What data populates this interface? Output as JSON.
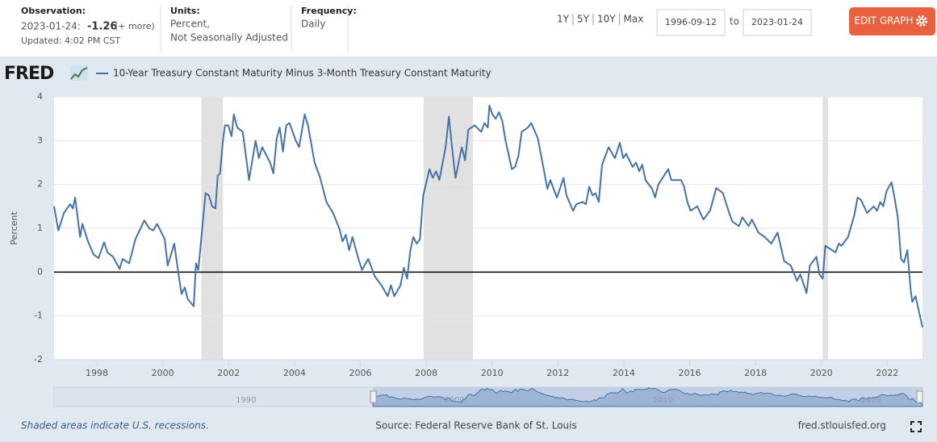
{
  "header": {
    "observation": {
      "label": "Observation:",
      "date": "2023-01-24:",
      "value": "-1.26",
      "more": "(+ more)",
      "updated": "Updated: 4:02 PM CST"
    },
    "units": {
      "label": "Units:",
      "lines": [
        "Percent,",
        "Not Seasonally Adjusted"
      ]
    },
    "frequency": {
      "label": "Frequency:",
      "value": "Daily"
    },
    "ranges": [
      "1Y",
      "5Y",
      "10Y",
      "Max"
    ],
    "start_date": "1996-09-12",
    "to": "to",
    "end_date": "2023-01-24",
    "edit_button": "EDIT GRAPH"
  },
  "logo": "FRED",
  "chart_data": {
    "type": "line",
    "ylabel": "Percent",
    "xlim": [
      1996.7,
      2023.07
    ],
    "xticks": [
      1998,
      2000,
      2002,
      2004,
      2006,
      2008,
      2010,
      2012,
      2014,
      2016,
      2018,
      2020,
      2022
    ],
    "ylim": [
      -2,
      4
    ],
    "yticks": [
      -2,
      -1,
      0,
      1,
      2,
      3,
      4
    ],
    "grid": true,
    "baseline": 0,
    "recessions": [
      [
        2001.17,
        2001.83
      ],
      [
        2007.92,
        2009.42
      ],
      [
        2020.04,
        2020.2
      ]
    ],
    "recession_color": "#e1e1e1",
    "x": [
      1996.7,
      1996.83,
      1997.0,
      1997.19,
      1997.27,
      1997.34,
      1997.49,
      1997.56,
      1997.73,
      1997.9,
      1998.05,
      1998.22,
      1998.32,
      1998.49,
      1998.69,
      1998.78,
      1998.98,
      1999.17,
      1999.44,
      1999.59,
      1999.71,
      1999.83,
      2000.06,
      2000.15,
      2000.25,
      2000.35,
      2000.47,
      2000.57,
      2000.67,
      2000.76,
      2000.94,
      2001.01,
      2001.08,
      2001.2,
      2001.3,
      2001.4,
      2001.5,
      2001.6,
      2001.67,
      2001.74,
      2001.82,
      2001.89,
      2001.99,
      2002.09,
      2002.16,
      2002.26,
      2002.43,
      2002.62,
      2002.82,
      2002.92,
      2003.02,
      2003.26,
      2003.36,
      2003.46,
      2003.55,
      2003.65,
      2003.75,
      2003.85,
      2004.04,
      2004.14,
      2004.31,
      2004.41,
      2004.61,
      2004.78,
      2004.97,
      2005.17,
      2005.36,
      2005.46,
      2005.56,
      2005.66,
      2005.76,
      2005.95,
      2006.05,
      2006.24,
      2006.44,
      2006.64,
      2006.83,
      2006.93,
      2007.03,
      2007.22,
      2007.32,
      2007.42,
      2007.52,
      2007.61,
      2007.71,
      2007.81,
      2007.91,
      2008.1,
      2008.2,
      2008.3,
      2008.4,
      2008.59,
      2008.69,
      2008.79,
      2008.89,
      2009.08,
      2009.18,
      2009.28,
      2009.47,
      2009.67,
      2009.77,
      2009.87,
      2009.92,
      2010.01,
      2010.11,
      2010.21,
      2010.31,
      2010.41,
      2010.6,
      2010.7,
      2010.8,
      2010.9,
      2011.09,
      2011.19,
      2011.39,
      2011.58,
      2011.68,
      2011.77,
      2011.97,
      2012.17,
      2012.26,
      2012.46,
      2012.56,
      2012.75,
      2012.85,
      2012.95,
      2013.05,
      2013.14,
      2013.24,
      2013.34,
      2013.54,
      2013.73,
      2013.88,
      2013.98,
      2014.07,
      2014.27,
      2014.37,
      2014.47,
      2014.56,
      2014.66,
      2014.86,
      2014.95,
      2015.05,
      2015.35,
      2015.44,
      2015.74,
      2015.83,
      2015.93,
      2016.03,
      2016.23,
      2016.42,
      2016.62,
      2016.81,
      2017.01,
      2017.2,
      2017.3,
      2017.5,
      2017.6,
      2017.79,
      2017.89,
      2018.09,
      2018.28,
      2018.48,
      2018.67,
      2018.87,
      2019.07,
      2019.26,
      2019.36,
      2019.55,
      2019.65,
      2019.85,
      2019.94,
      2020.04,
      2020.12,
      2020.43,
      2020.53,
      2020.61,
      2020.81,
      2021.0,
      2021.1,
      2021.2,
      2021.39,
      2021.59,
      2021.69,
      2021.79,
      2021.88,
      2021.98,
      2022.13,
      2022.22,
      2022.32,
      2022.42,
      2022.51,
      2022.61,
      2022.71,
      2022.76,
      2022.86,
      2023.07
    ],
    "series": [
      {
        "name": "10-Year Treasury Constant Maturity Minus 3-Month Treasury Constant Maturity",
        "color": "#4572a7",
        "values": [
          1.5,
          0.95,
          1.35,
          1.55,
          1.45,
          1.7,
          0.8,
          1.1,
          0.7,
          0.4,
          0.32,
          0.68,
          0.45,
          0.35,
          0.07,
          0.3,
          0.2,
          0.75,
          1.18,
          1.0,
          0.95,
          1.1,
          0.75,
          0.15,
          0.4,
          0.65,
          0.0,
          -0.5,
          -0.35,
          -0.62,
          -0.78,
          0.2,
          0.05,
          1.0,
          1.8,
          1.75,
          1.5,
          1.45,
          2.2,
          2.25,
          2.95,
          3.35,
          3.35,
          3.1,
          3.6,
          3.3,
          3.2,
          2.1,
          3.0,
          2.6,
          2.85,
          2.5,
          2.25,
          3.05,
          3.3,
          2.75,
          3.35,
          3.4,
          3.0,
          2.85,
          3.6,
          3.35,
          2.5,
          2.15,
          1.6,
          1.35,
          1.0,
          0.7,
          0.85,
          0.5,
          0.8,
          0.28,
          0.05,
          0.3,
          -0.1,
          -0.3,
          -0.55,
          -0.3,
          -0.55,
          -0.3,
          0.1,
          -0.15,
          0.5,
          0.8,
          0.65,
          0.75,
          1.75,
          2.35,
          2.15,
          2.3,
          2.1,
          2.85,
          3.55,
          2.8,
          2.15,
          2.85,
          2.55,
          3.25,
          3.35,
          3.2,
          3.4,
          3.3,
          3.8,
          3.6,
          3.5,
          3.65,
          3.45,
          3.0,
          2.35,
          2.4,
          2.65,
          3.2,
          3.3,
          3.4,
          3.05,
          2.3,
          1.9,
          2.1,
          1.7,
          2.15,
          1.75,
          1.4,
          1.55,
          1.6,
          1.55,
          1.95,
          1.75,
          1.8,
          1.6,
          2.45,
          2.85,
          2.6,
          2.95,
          2.6,
          2.7,
          2.4,
          2.5,
          2.3,
          2.45,
          2.1,
          1.9,
          1.7,
          2.0,
          2.35,
          2.1,
          2.1,
          1.95,
          1.6,
          1.4,
          1.5,
          1.2,
          1.4,
          1.92,
          1.8,
          1.35,
          1.15,
          1.05,
          1.25,
          1.05,
          1.2,
          0.9,
          0.8,
          0.65,
          0.9,
          0.25,
          0.15,
          -0.2,
          -0.05,
          -0.48,
          0.15,
          0.35,
          -0.05,
          -0.15,
          0.6,
          0.45,
          0.65,
          0.6,
          0.8,
          1.3,
          1.7,
          1.65,
          1.35,
          1.5,
          1.4,
          1.6,
          1.5,
          1.85,
          2.05,
          1.7,
          1.25,
          0.3,
          0.22,
          0.5,
          -0.4,
          -0.68,
          -0.55,
          -1.26
        ]
      }
    ],
    "navigator": {
      "xlim": [
        1981.4,
        2023.07
      ],
      "ticks": [
        1990,
        2000,
        2010,
        2020
      ],
      "selection": [
        1996.7,
        2023.07
      ]
    }
  },
  "footer": {
    "note": "Shaded areas indicate U.S. recessions.",
    "source": "Source: Federal Reserve Bank of St. Louis",
    "site": "fred.stlouisfed.org"
  }
}
